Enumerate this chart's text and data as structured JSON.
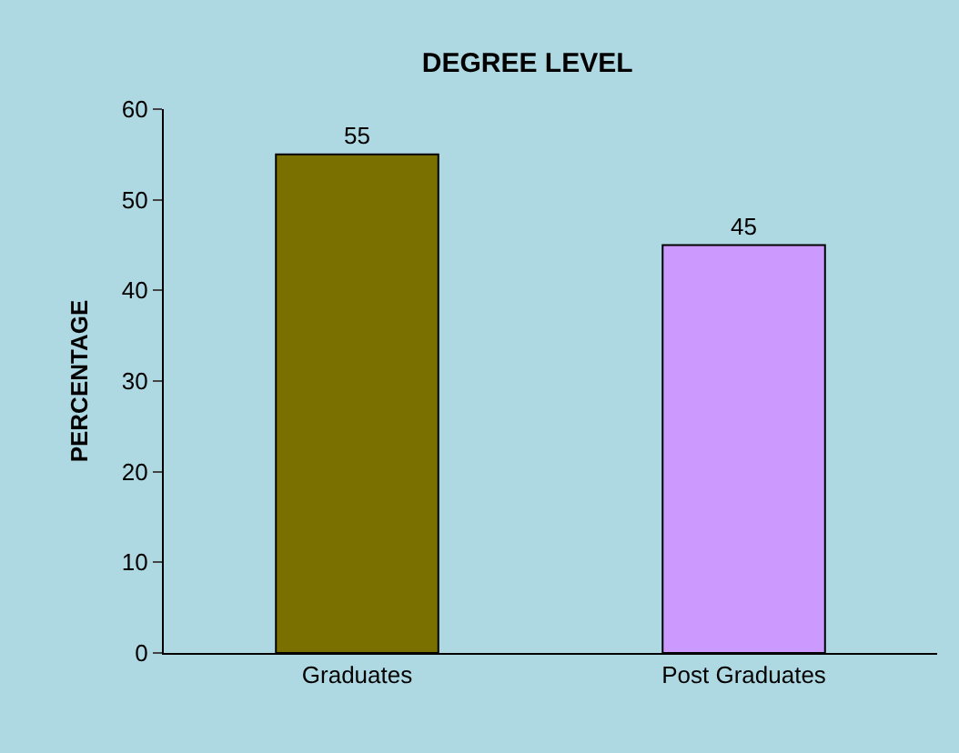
{
  "chart_data": {
    "type": "bar",
    "title": "DEGREE LEVEL",
    "ylabel": "PERCENTAGE",
    "categories": [
      "Graduates",
      "Post Graduates"
    ],
    "values": [
      55,
      45
    ],
    "colors": [
      "#7a7000",
      "#cc99ff"
    ],
    "ylim": [
      0,
      60
    ],
    "yticks": [
      0,
      10,
      20,
      30,
      40,
      50,
      60
    ],
    "grid": false,
    "legend": false,
    "data_labels": true
  }
}
